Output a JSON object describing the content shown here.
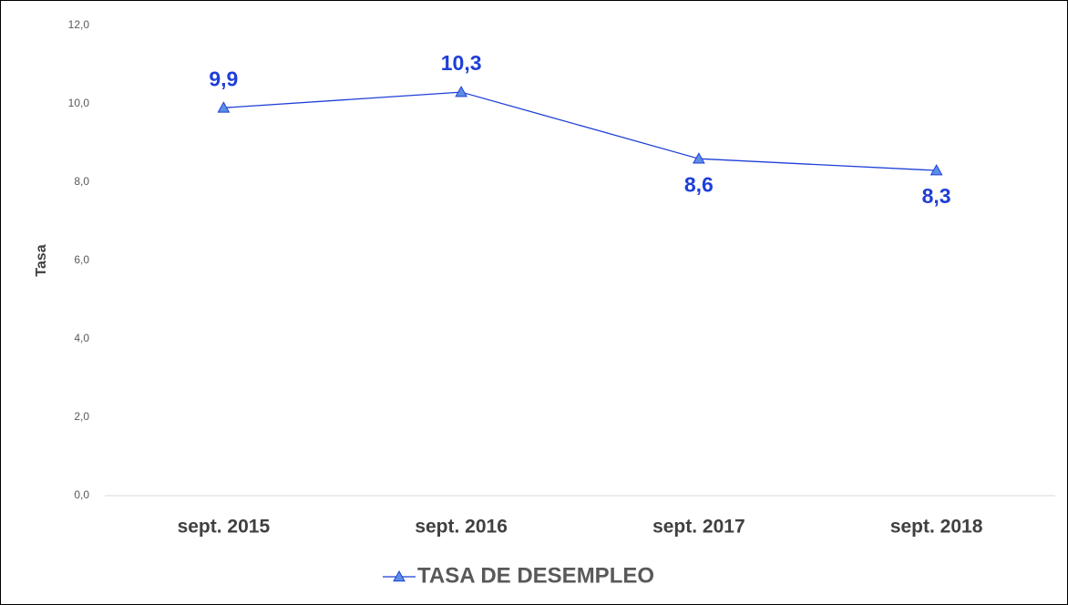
{
  "chart_data": {
    "type": "line",
    "y_label": "Tasa",
    "categories": [
      "sept. 2015",
      "sept. 2016",
      "sept. 2017",
      "sept. 2018"
    ],
    "series": [
      {
        "name": "TASA DE DESEMPLEO",
        "color": "#1f3fd8",
        "marker_fill": "#5b8ee6",
        "values": [
          9.9,
          10.3,
          8.6,
          8.3
        ],
        "value_labels": [
          "9,9",
          "10,3",
          "8,6",
          "8,3"
        ]
      }
    ],
    "ylim": [
      0,
      12
    ],
    "yticks": [
      {
        "value": 0,
        "label": "0,0"
      },
      {
        "value": 2,
        "label": "2,0"
      },
      {
        "value": 4,
        "label": "4,0"
      },
      {
        "value": 6,
        "label": "6,0"
      },
      {
        "value": 8,
        "label": "8,0"
      },
      {
        "value": 10,
        "label": "10,0"
      },
      {
        "value": 12,
        "label": "12,0"
      }
    ],
    "grid": false,
    "legend": "bottom"
  }
}
